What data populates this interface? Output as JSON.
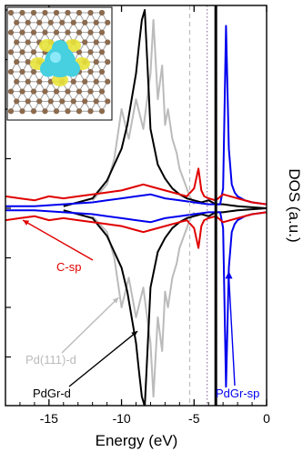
{
  "chart_data": {
    "type": "line",
    "xlabel": "Energy (eV)",
    "ylabel": "DOS (a.u.)",
    "xlim": [
      -18,
      0
    ],
    "x_ticks": [
      -15,
      -10,
      -5,
      0
    ],
    "x_tick_labels": [
      "-15",
      "-10",
      "-5",
      "0"
    ],
    "ylim": [
      -1,
      1
    ],
    "y_tick_count": 9,
    "grid": false,
    "fermi_level": -3.5,
    "reference_lines": [
      {
        "x": -5.3,
        "style": "dashed",
        "color": "#bbbbbb"
      },
      {
        "x": -4.1,
        "style": "dotted",
        "color": "#9977aa"
      }
    ],
    "inset": {
      "icon": "pd-on-graphene-charge-density-icon",
      "atom_color": "#8b6a4e",
      "bond_color": "#a0a0a0",
      "isosurface_color": "#46d0e0",
      "depletion_color": "#e8e33a"
    },
    "series": [
      {
        "name": "C-sp",
        "color": "#e00000",
        "x": [
          -18,
          -17,
          -16,
          -15,
          -14,
          -13,
          -12,
          -11,
          -10,
          -9,
          -8.5,
          -8,
          -7,
          -6,
          -5.5,
          -5,
          -4.7,
          -4.5,
          -4.3,
          -4,
          -3.5,
          -3,
          -2,
          -1,
          0
        ],
        "up": [
          0.06,
          0.05,
          0.04,
          0.06,
          0.05,
          0.06,
          0.07,
          0.08,
          0.09,
          0.11,
          0.12,
          0.11,
          0.09,
          0.07,
          0.06,
          0.1,
          0.2,
          0.09,
          0.06,
          0.05,
          0.04,
          0.07,
          0.05,
          0.03,
          0.02
        ],
        "down": [
          -0.06,
          -0.05,
          -0.04,
          -0.06,
          -0.05,
          -0.06,
          -0.07,
          -0.08,
          -0.09,
          -0.11,
          -0.12,
          -0.11,
          -0.09,
          -0.07,
          -0.06,
          -0.1,
          -0.2,
          -0.09,
          -0.06,
          -0.05,
          -0.04,
          -0.07,
          -0.05,
          -0.03,
          -0.02
        ]
      },
      {
        "name": "PdGr-sp",
        "color": "#0000ee",
        "x": [
          -18,
          -16,
          -14,
          -12,
          -11,
          -10,
          -9,
          -8,
          -7,
          -6,
          -5,
          -4,
          -3.2,
          -3,
          -2.8,
          -2.6,
          -2.4,
          -2.2,
          -2,
          -1.5,
          -1,
          0
        ],
        "up": [
          0.01,
          0.01,
          0.02,
          0.03,
          0.04,
          0.05,
          0.06,
          0.07,
          0.05,
          0.04,
          0.03,
          0.02,
          0.02,
          0.1,
          0.92,
          0.3,
          0.12,
          0.08,
          0.06,
          0.04,
          0.03,
          0.02
        ],
        "down": [
          -0.01,
          -0.01,
          -0.02,
          -0.03,
          -0.04,
          -0.05,
          -0.06,
          -0.07,
          -0.05,
          -0.04,
          -0.03,
          -0.02,
          -0.02,
          -0.1,
          -0.9,
          -0.3,
          -0.12,
          -0.08,
          -0.06,
          -0.04,
          -0.03,
          -0.02
        ]
      },
      {
        "name": "Pd(111)-d",
        "color": "#bbbbbb",
        "x": [
          -12,
          -11,
          -10.5,
          -10,
          -9.5,
          -9,
          -8.5,
          -8,
          -7.8,
          -7.5,
          -7.2,
          -7,
          -6.8,
          -6.5,
          -6.2,
          -6,
          -5.6,
          -5.3,
          -5
        ],
        "up": [
          0.04,
          0.12,
          0.25,
          0.5,
          0.35,
          0.55,
          0.4,
          0.68,
          0.95,
          0.55,
          0.72,
          0.42,
          0.5,
          0.35,
          0.28,
          0.2,
          0.12,
          0.06,
          0.02
        ],
        "down": [
          -0.04,
          -0.12,
          -0.25,
          -0.5,
          -0.35,
          -0.55,
          -0.4,
          -0.68,
          -0.95,
          -0.55,
          -0.72,
          -0.42,
          -0.5,
          -0.35,
          -0.28,
          -0.2,
          -0.12,
          -0.06,
          -0.02
        ]
      },
      {
        "name": "PdGr-d",
        "color": "#000000",
        "x": [
          -14,
          -12,
          -11,
          -10.5,
          -10,
          -9.6,
          -9.3,
          -9,
          -8.8,
          -8.6,
          -8.4,
          -8.2,
          -8,
          -7.5,
          -7,
          -6.5,
          -6,
          -5.5,
          -5,
          -4.5,
          -4,
          -3.5,
          -3,
          -2,
          0
        ],
        "up": [
          0.01,
          0.05,
          0.14,
          0.22,
          0.3,
          0.42,
          0.55,
          0.68,
          0.82,
          0.95,
          1.0,
          0.7,
          0.4,
          0.22,
          0.15,
          0.1,
          0.07,
          0.05,
          0.04,
          0.03,
          0.04,
          0.02,
          0.02,
          0.01,
          0.0
        ],
        "down": [
          -0.01,
          -0.05,
          -0.14,
          -0.22,
          -0.3,
          -0.42,
          -0.55,
          -0.68,
          -0.82,
          -0.95,
          -1.0,
          -0.7,
          -0.4,
          -0.22,
          -0.15,
          -0.1,
          -0.07,
          -0.05,
          -0.04,
          -0.03,
          -0.04,
          -0.02,
          -0.02,
          -0.01,
          0.0
        ]
      }
    ],
    "annotations": [
      {
        "text": "C-sp",
        "series": "C-sp",
        "points_to": [
          -16.8,
          -0.06
        ]
      },
      {
        "text": "Pd(111)-d",
        "series": "Pd(111)-d",
        "points_to": [
          -10.2,
          -0.45
        ]
      },
      {
        "text": "PdGr-d",
        "series": "PdGr-d",
        "points_to": [
          -8.9,
          -0.62
        ]
      },
      {
        "text": "PdGr-sp",
        "series": "PdGr-sp",
        "points_to": [
          -2.6,
          -0.3
        ]
      }
    ]
  }
}
